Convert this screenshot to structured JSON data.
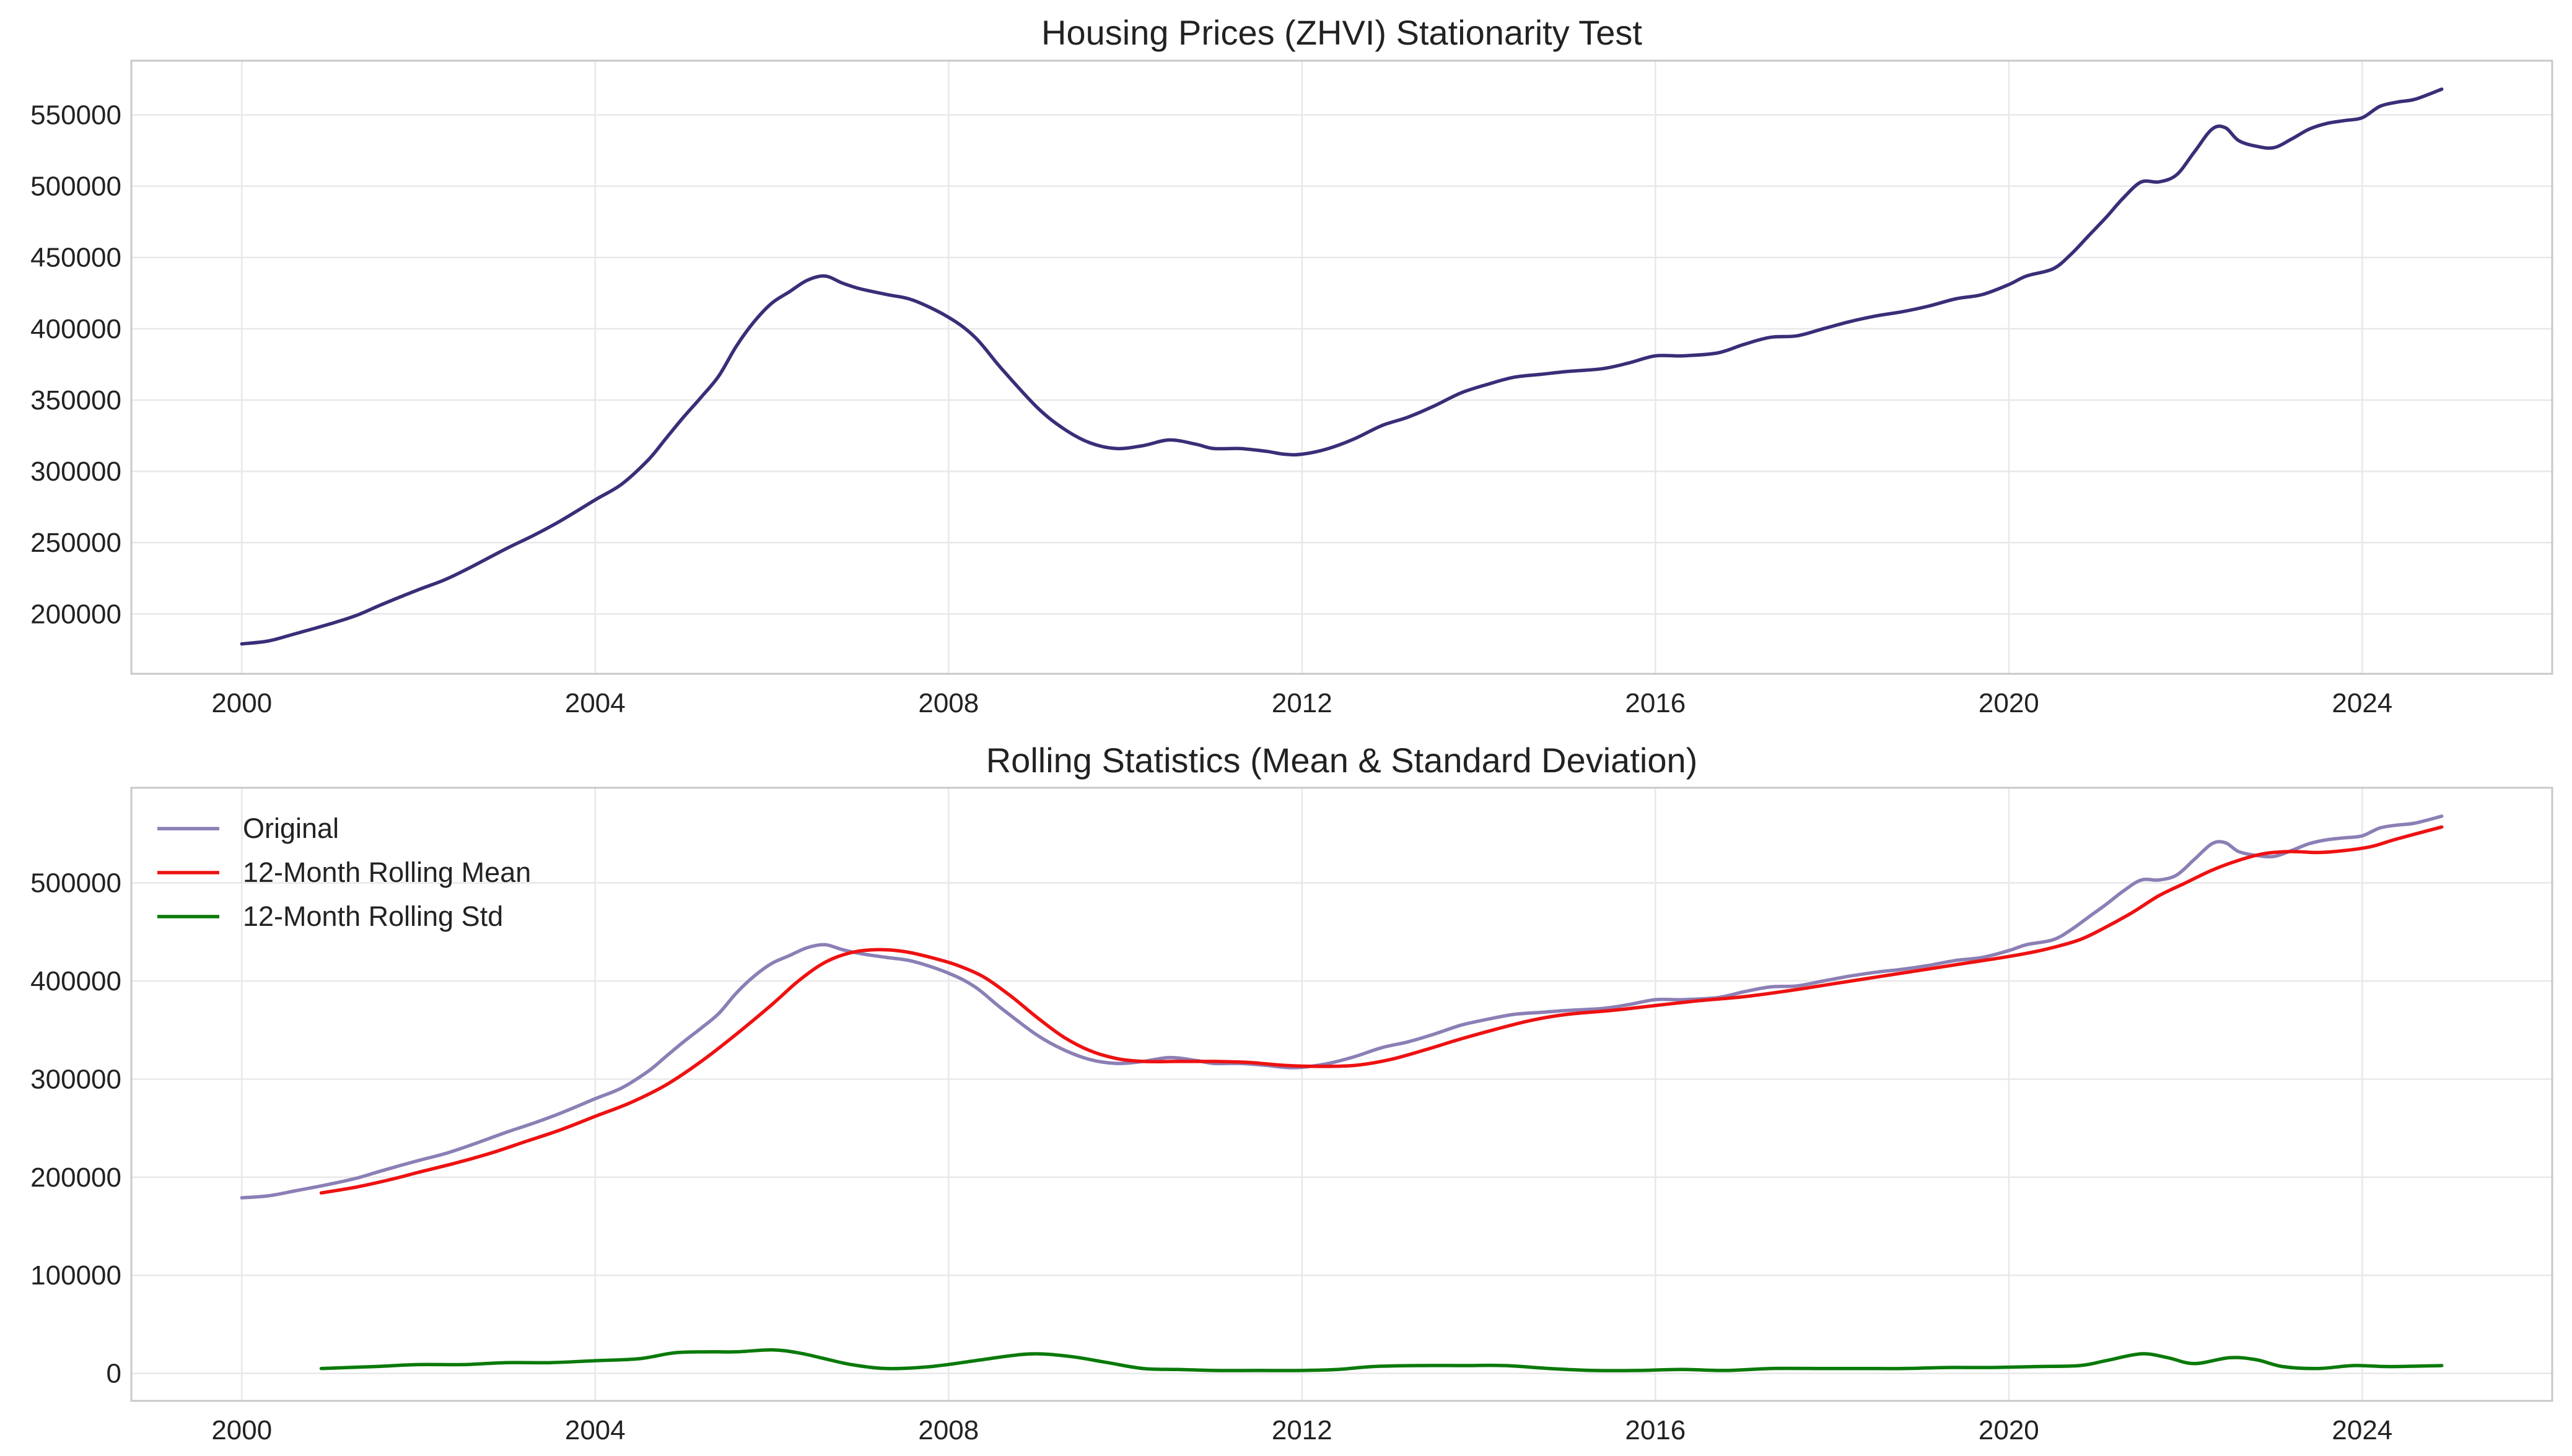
{
  "figure": {
    "background": "#ffffff"
  },
  "colors": {
    "original_top": "#3b2d78",
    "original_faded": "#8c7fb5",
    "rolling_mean": "#ee1111",
    "rolling_std": "#0a7a0a",
    "grid": "#e8e8e8",
    "frame": "#c8c8c8",
    "text": "#222222"
  },
  "chart_data": [
    {
      "type": "line",
      "title": "Housing Prices (ZHVI) Stationarity Test",
      "xlabel": "",
      "ylabel": "",
      "xlim": [
        1998.75,
        2026.15
      ],
      "ylim": [
        158000,
        588000
      ],
      "x_ticks": [
        2000,
        2004,
        2008,
        2012,
        2016,
        2020,
        2024
      ],
      "x_tick_labels": [
        "2000",
        "2004",
        "2008",
        "2012",
        "2016",
        "2020",
        "2024"
      ],
      "y_ticks": [
        200000,
        250000,
        300000,
        350000,
        400000,
        450000,
        500000,
        550000
      ],
      "y_tick_labels": [
        "200000",
        "250000",
        "300000",
        "350000",
        "400000",
        "450000",
        "500000",
        "550000"
      ],
      "grid": true,
      "legend": null,
      "series": [
        {
          "key": "original",
          "color": "#3b2d78",
          "x": [
            2000.0,
            2000.3,
            2000.6,
            2001.0,
            2001.3,
            2001.6,
            2002.0,
            2002.3,
            2002.6,
            2003.0,
            2003.3,
            2003.6,
            2004.0,
            2004.3,
            2004.6,
            2004.8,
            2005.0,
            2005.2,
            2005.4,
            2005.6,
            2005.8,
            2006.0,
            2006.2,
            2006.4,
            2006.6,
            2006.8,
            2007.0,
            2007.3,
            2007.6,
            2008.0,
            2008.3,
            2008.6,
            2009.0,
            2009.3,
            2009.6,
            2009.9,
            2010.2,
            2010.5,
            2010.8,
            2011.0,
            2011.3,
            2011.6,
            2011.8,
            2012.0,
            2012.3,
            2012.6,
            2012.9,
            2013.2,
            2013.5,
            2013.8,
            2014.1,
            2014.4,
            2014.7,
            2015.0,
            2015.4,
            2015.7,
            2016.0,
            2016.3,
            2016.7,
            2017.0,
            2017.3,
            2017.6,
            2017.9,
            2018.2,
            2018.5,
            2018.8,
            2019.1,
            2019.4,
            2019.7,
            2020.0,
            2020.2,
            2020.5,
            2020.7,
            2020.9,
            2021.1,
            2021.3,
            2021.5,
            2021.7,
            2021.9,
            2022.1,
            2022.3,
            2022.45,
            2022.6,
            2022.8,
            2023.0,
            2023.2,
            2023.4,
            2023.6,
            2023.8,
            2024.0,
            2024.2,
            2024.4,
            2024.6,
            2024.9
          ],
          "y": [
            179000,
            181000,
            186000,
            193000,
            199000,
            207000,
            217000,
            224000,
            233000,
            246000,
            255000,
            265000,
            280000,
            291000,
            308000,
            323000,
            338000,
            352000,
            367000,
            388000,
            405000,
            418000,
            426000,
            434000,
            437000,
            432000,
            428000,
            424000,
            420000,
            408000,
            394000,
            372000,
            345000,
            330000,
            320000,
            316000,
            318000,
            322000,
            319000,
            316000,
            316000,
            314000,
            312000,
            312000,
            316000,
            323000,
            332000,
            338000,
            346000,
            355000,
            361000,
            366000,
            368000,
            370000,
            372000,
            376000,
            381000,
            381000,
            383000,
            389000,
            394000,
            395000,
            400000,
            405000,
            409000,
            412000,
            416000,
            421000,
            424000,
            431000,
            437000,
            442000,
            452000,
            465000,
            478000,
            492000,
            503000,
            503000,
            508000,
            524000,
            540000,
            541000,
            532000,
            528000,
            527000,
            533000,
            540000,
            544000,
            546000,
            548000,
            556000,
            559000,
            561000,
            568000
          ]
        }
      ]
    },
    {
      "type": "line",
      "title": "Rolling Statistics (Mean & Standard Deviation)",
      "xlabel": "",
      "ylabel": "",
      "xlim": [
        1998.75,
        2026.15
      ],
      "ylim": [
        -28000,
        597000
      ],
      "x_ticks": [
        2000,
        2004,
        2008,
        2012,
        2016,
        2020,
        2024
      ],
      "x_tick_labels": [
        "2000",
        "2004",
        "2008",
        "2012",
        "2016",
        "2020",
        "2024"
      ],
      "y_ticks": [
        0,
        100000,
        200000,
        300000,
        400000,
        500000
      ],
      "y_tick_labels": [
        "0",
        "100000",
        "200000",
        "300000",
        "400000",
        "500000"
      ],
      "grid": true,
      "legend": "top-left",
      "series": [
        {
          "name": "Original",
          "key": "original",
          "color": "#8c7fb5",
          "x": [
            2000.0,
            2000.3,
            2000.6,
            2001.0,
            2001.3,
            2001.6,
            2002.0,
            2002.3,
            2002.6,
            2003.0,
            2003.3,
            2003.6,
            2004.0,
            2004.3,
            2004.6,
            2004.8,
            2005.0,
            2005.2,
            2005.4,
            2005.6,
            2005.8,
            2006.0,
            2006.2,
            2006.4,
            2006.6,
            2006.8,
            2007.0,
            2007.3,
            2007.6,
            2008.0,
            2008.3,
            2008.6,
            2009.0,
            2009.3,
            2009.6,
            2009.9,
            2010.2,
            2010.5,
            2010.8,
            2011.0,
            2011.3,
            2011.6,
            2011.8,
            2012.0,
            2012.3,
            2012.6,
            2012.9,
            2013.2,
            2013.5,
            2013.8,
            2014.1,
            2014.4,
            2014.7,
            2015.0,
            2015.4,
            2015.7,
            2016.0,
            2016.3,
            2016.7,
            2017.0,
            2017.3,
            2017.6,
            2017.9,
            2018.2,
            2018.5,
            2018.8,
            2019.1,
            2019.4,
            2019.7,
            2020.0,
            2020.2,
            2020.5,
            2020.7,
            2020.9,
            2021.1,
            2021.3,
            2021.5,
            2021.7,
            2021.9,
            2022.1,
            2022.3,
            2022.45,
            2022.6,
            2022.8,
            2023.0,
            2023.2,
            2023.4,
            2023.6,
            2023.8,
            2024.0,
            2024.2,
            2024.4,
            2024.6,
            2024.9
          ],
          "y": [
            179000,
            181000,
            186000,
            193000,
            199000,
            207000,
            217000,
            224000,
            233000,
            246000,
            255000,
            265000,
            280000,
            291000,
            308000,
            323000,
            338000,
            352000,
            367000,
            388000,
            405000,
            418000,
            426000,
            434000,
            437000,
            432000,
            428000,
            424000,
            420000,
            408000,
            394000,
            372000,
            345000,
            330000,
            320000,
            316000,
            318000,
            322000,
            319000,
            316000,
            316000,
            314000,
            312000,
            312000,
            316000,
            323000,
            332000,
            338000,
            346000,
            355000,
            361000,
            366000,
            368000,
            370000,
            372000,
            376000,
            381000,
            381000,
            383000,
            389000,
            394000,
            395000,
            400000,
            405000,
            409000,
            412000,
            416000,
            421000,
            424000,
            431000,
            437000,
            442000,
            452000,
            465000,
            478000,
            492000,
            503000,
            503000,
            508000,
            524000,
            540000,
            541000,
            532000,
            528000,
            527000,
            533000,
            540000,
            544000,
            546000,
            548000,
            556000,
            559000,
            561000,
            568000
          ]
        },
        {
          "name": "12-Month Rolling Mean",
          "key": "mean",
          "color": "#ee1111",
          "x": [
            2000.9,
            2001.3,
            2001.7,
            2002.0,
            2002.4,
            2002.8,
            2003.2,
            2003.6,
            2004.0,
            2004.4,
            2004.8,
            2005.2,
            2005.6,
            2006.0,
            2006.3,
            2006.6,
            2006.9,
            2007.2,
            2007.5,
            2007.8,
            2008.1,
            2008.4,
            2008.7,
            2009.0,
            2009.3,
            2009.6,
            2009.9,
            2010.2,
            2010.6,
            2011.0,
            2011.4,
            2011.8,
            2012.2,
            2012.6,
            2013.0,
            2013.4,
            2013.8,
            2014.2,
            2014.6,
            2015.0,
            2015.5,
            2016.0,
            2016.5,
            2017.0,
            2017.5,
            2018.0,
            2018.5,
            2019.0,
            2019.5,
            2020.0,
            2020.4,
            2020.8,
            2021.1,
            2021.4,
            2021.7,
            2022.0,
            2022.3,
            2022.6,
            2022.9,
            2023.2,
            2023.5,
            2023.8,
            2024.1,
            2024.4,
            2024.9
          ],
          "y": [
            184000,
            190000,
            198000,
            205000,
            214000,
            224000,
            236000,
            248000,
            262000,
            276000,
            294000,
            318000,
            346000,
            376000,
            400000,
            419000,
            429000,
            432000,
            430000,
            424000,
            416000,
            404000,
            385000,
            363000,
            343000,
            329000,
            321000,
            318000,
            318000,
            318000,
            317000,
            314000,
            313000,
            314000,
            320000,
            330000,
            341000,
            351000,
            360000,
            366000,
            370000,
            375000,
            380000,
            384000,
            390000,
            397000,
            404000,
            411000,
            418000,
            425000,
            432000,
            442000,
            455000,
            470000,
            487000,
            500000,
            513000,
            523000,
            530000,
            532000,
            531000,
            533000,
            537000,
            545000,
            557000
          ]
        },
        {
          "name": "12-Month Rolling Std",
          "key": "std",
          "color": "#0a7a0a",
          "x": [
            2000.9,
            2001.5,
            2002.0,
            2002.5,
            2003.0,
            2003.5,
            2004.0,
            2004.5,
            2004.9,
            2005.3,
            2005.6,
            2006.0,
            2006.3,
            2006.6,
            2006.9,
            2007.3,
            2007.8,
            2008.3,
            2008.7,
            2009.0,
            2009.4,
            2009.8,
            2010.2,
            2010.6,
            2011.0,
            2011.5,
            2012.0,
            2012.4,
            2012.8,
            2013.3,
            2013.8,
            2014.3,
            2014.8,
            2015.3,
            2015.8,
            2016.3,
            2016.8,
            2017.3,
            2017.8,
            2018.3,
            2018.8,
            2019.3,
            2019.8,
            2020.3,
            2020.8,
            2021.1,
            2021.5,
            2021.8,
            2022.1,
            2022.5,
            2022.8,
            2023.1,
            2023.5,
            2023.9,
            2024.3,
            2024.9
          ],
          "y": [
            5000,
            7000,
            9000,
            9000,
            11000,
            11000,
            13000,
            15000,
            21000,
            22000,
            22000,
            24000,
            21000,
            15000,
            9000,
            5000,
            7000,
            13000,
            18000,
            20000,
            17000,
            11000,
            5000,
            4000,
            3000,
            3000,
            3000,
            4000,
            7000,
            8000,
            8000,
            8000,
            5000,
            3000,
            3000,
            4000,
            3000,
            5000,
            5000,
            5000,
            5000,
            6000,
            6000,
            7000,
            8000,
            13000,
            20000,
            16000,
            10000,
            16000,
            14000,
            7000,
            5000,
            8000,
            7000,
            8000
          ]
        }
      ]
    }
  ]
}
